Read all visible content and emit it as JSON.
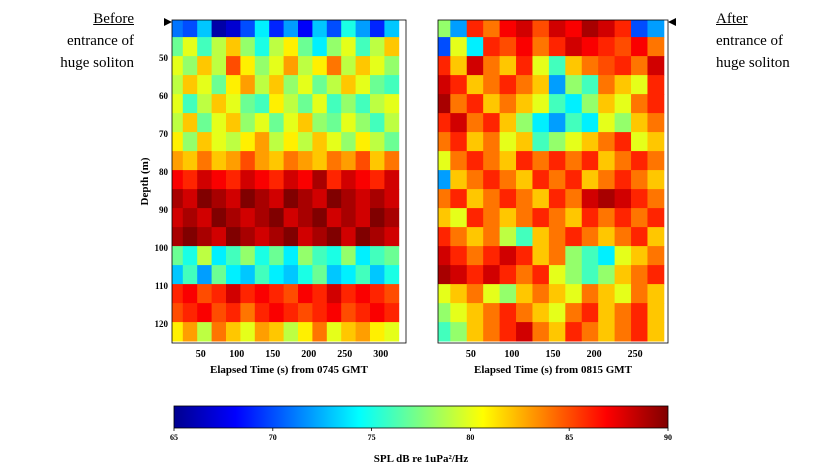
{
  "annotations": {
    "left": {
      "heading": "Before",
      "line1": "entrance of",
      "line2": "huge soliton"
    },
    "right": {
      "heading": "After",
      "line1": "entrance of",
      "line2": "huge soliton"
    }
  },
  "chart_data": {
    "type": "heatmap",
    "ylabel": "Depth (m)",
    "yticks": [
      "50",
      "60",
      "70",
      "80",
      "90",
      "100",
      "110",
      "120"
    ],
    "ylim": [
      40,
      125
    ],
    "depths": [
      42,
      47,
      52,
      57,
      62,
      67,
      72,
      77,
      82,
      87,
      92,
      97,
      102,
      107,
      112,
      117,
      122
    ],
    "colorbar": {
      "label": "SPL dB re 1uPa²/Hz",
      "ticks": [
        "65",
        "70",
        "75",
        "80",
        "85",
        "90"
      ],
      "range": [
        65,
        90
      ],
      "colormap": "jet"
    },
    "panels": [
      {
        "xlabel": "Elapsed Time (s) from 0745 GMT",
        "xticks": [
          "50",
          "100",
          "150",
          "200",
          "250",
          "300"
        ],
        "xlim": [
          10,
          335
        ],
        "times": [
          15,
          35,
          55,
          75,
          95,
          115,
          135,
          155,
          175,
          195,
          215,
          235,
          255,
          275,
          295,
          315
        ],
        "spl": [
          [
            71,
            70,
            73,
            66,
            67,
            70,
            74,
            69,
            72,
            68,
            73,
            70,
            75,
            72,
            69,
            73
          ],
          [
            77,
            80,
            76,
            79,
            82,
            78,
            75,
            79,
            81,
            77,
            74,
            78,
            80,
            76,
            79,
            82
          ],
          [
            80,
            78,
            82,
            79,
            85,
            81,
            78,
            80,
            83,
            79,
            81,
            84,
            79,
            82,
            80,
            78
          ],
          [
            79,
            82,
            80,
            77,
            81,
            83,
            79,
            82,
            78,
            80,
            77,
            79,
            82,
            80,
            77,
            76
          ],
          [
            80,
            76,
            79,
            82,
            80,
            77,
            76,
            81,
            79,
            77,
            80,
            76,
            78,
            76,
            79,
            80
          ],
          [
            79,
            82,
            77,
            80,
            82,
            78,
            80,
            77,
            80,
            82,
            78,
            77,
            80,
            78,
            76,
            79
          ],
          [
            81,
            78,
            82,
            80,
            79,
            81,
            83,
            79,
            81,
            79,
            82,
            80,
            78,
            81,
            79,
            77
          ],
          [
            83,
            82,
            84,
            82,
            83,
            85,
            83,
            82,
            84,
            83,
            82,
            84,
            83,
            85,
            82,
            84
          ],
          [
            87,
            86,
            88,
            87,
            86,
            88,
            87,
            86,
            88,
            87,
            89,
            86,
            88,
            87,
            86,
            88
          ],
          [
            89,
            88,
            90,
            89,
            88,
            90,
            89,
            88,
            90,
            89,
            88,
            90,
            89,
            88,
            89,
            88
          ],
          [
            88,
            89,
            88,
            90,
            89,
            88,
            89,
            90,
            88,
            89,
            90,
            88,
            89,
            88,
            90,
            89
          ],
          [
            89,
            90,
            89,
            88,
            90,
            89,
            88,
            89,
            90,
            88,
            89,
            90,
            88,
            90,
            89,
            88
          ],
          [
            77,
            75,
            79,
            74,
            76,
            78,
            75,
            77,
            74,
            78,
            76,
            75,
            78,
            74,
            76,
            77
          ],
          [
            73,
            76,
            72,
            77,
            74,
            73,
            76,
            74,
            73,
            75,
            77,
            73,
            74,
            76,
            73,
            75
          ],
          [
            86,
            87,
            85,
            86,
            88,
            86,
            87,
            86,
            85,
            87,
            86,
            88,
            86,
            87,
            86,
            85
          ],
          [
            85,
            86,
            87,
            85,
            86,
            84,
            86,
            87,
            86,
            85,
            86,
            87,
            85,
            86,
            87,
            86
          ],
          [
            81,
            83,
            79,
            84,
            82,
            80,
            83,
            82,
            79,
            81,
            84,
            80,
            82,
            83,
            81,
            80
          ]
        ]
      },
      {
        "xlabel": "Elapsed Time (s) from 0815 GMT",
        "xticks": [
          "50",
          "100",
          "150",
          "200",
          "250"
        ],
        "xlim": [
          10,
          290
        ],
        "times": [
          15,
          35,
          55,
          75,
          95,
          115,
          135,
          155,
          175,
          195,
          215,
          235,
          255,
          275
        ],
        "spl": [
          [
            78,
            72,
            86,
            84,
            87,
            88,
            85,
            88,
            87,
            89,
            88,
            86,
            70,
            72
          ],
          [
            70,
            80,
            74,
            86,
            85,
            87,
            84,
            86,
            88,
            87,
            86,
            85,
            87,
            84
          ],
          [
            86,
            82,
            88,
            84,
            82,
            86,
            80,
            76,
            82,
            84,
            85,
            86,
            84,
            88
          ],
          [
            88,
            86,
            82,
            84,
            86,
            84,
            82,
            72,
            78,
            76,
            84,
            82,
            80,
            86
          ],
          [
            89,
            84,
            86,
            82,
            84,
            82,
            80,
            76,
            74,
            78,
            82,
            80,
            84,
            86
          ],
          [
            86,
            88,
            84,
            86,
            82,
            78,
            74,
            72,
            76,
            74,
            80,
            78,
            82,
            84
          ],
          [
            84,
            86,
            82,
            84,
            80,
            82,
            76,
            78,
            80,
            82,
            84,
            86,
            80,
            82
          ],
          [
            80,
            84,
            86,
            84,
            82,
            86,
            84,
            86,
            84,
            86,
            82,
            84,
            86,
            84
          ],
          [
            72,
            82,
            84,
            86,
            84,
            82,
            86,
            84,
            86,
            82,
            84,
            86,
            84,
            82
          ],
          [
            84,
            86,
            82,
            84,
            86,
            84,
            82,
            86,
            84,
            88,
            89,
            88,
            86,
            84
          ],
          [
            82,
            80,
            86,
            84,
            82,
            84,
            86,
            84,
            82,
            86,
            84,
            86,
            84,
            86
          ],
          [
            86,
            84,
            82,
            84,
            79,
            76,
            82,
            84,
            86,
            84,
            82,
            84,
            86,
            82
          ],
          [
            88,
            86,
            84,
            86,
            88,
            86,
            82,
            84,
            78,
            76,
            74,
            80,
            82,
            84
          ],
          [
            89,
            88,
            86,
            88,
            86,
            84,
            86,
            80,
            78,
            76,
            78,
            82,
            84,
            86
          ],
          [
            80,
            82,
            84,
            80,
            78,
            82,
            84,
            82,
            80,
            84,
            82,
            80,
            84,
            82
          ],
          [
            78,
            80,
            82,
            84,
            86,
            84,
            82,
            80,
            84,
            86,
            82,
            84,
            86,
            82
          ],
          [
            76,
            78,
            82,
            84,
            86,
            88,
            84,
            82,
            86,
            84,
            82,
            84,
            86,
            82
          ]
        ]
      }
    ]
  }
}
